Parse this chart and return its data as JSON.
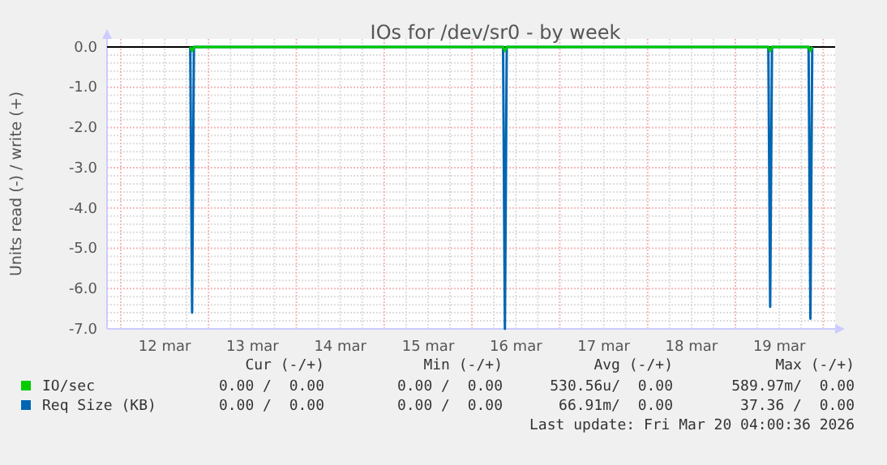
{
  "chart_data": {
    "type": "line",
    "title": "IOs for /dev/sr0 - by week",
    "ylabel": "Units read (-) / write (+)",
    "xlim": [
      "2026-03-11T20:15",
      "2026-03-20T03:15"
    ],
    "xticks": [
      {
        "value": "2026-03-12T00:00",
        "label": null
      },
      {
        "value": "2026-03-12T12:00",
        "label": "12 mar"
      },
      {
        "value": "2026-03-13T00:00",
        "label": null
      },
      {
        "value": "2026-03-13T12:00",
        "label": "13 mar"
      },
      {
        "value": "2026-03-14T00:00",
        "label": null
      },
      {
        "value": "2026-03-14T12:00",
        "label": "14 mar"
      },
      {
        "value": "2026-03-15T00:00",
        "label": null
      },
      {
        "value": "2026-03-15T12:00",
        "label": "15 mar"
      },
      {
        "value": "2026-03-16T00:00",
        "label": null
      },
      {
        "value": "2026-03-16T12:00",
        "label": "16 mar"
      },
      {
        "value": "2026-03-17T00:00",
        "label": null
      },
      {
        "value": "2026-03-17T12:00",
        "label": "17 mar"
      },
      {
        "value": "2026-03-18T00:00",
        "label": null
      },
      {
        "value": "2026-03-18T12:00",
        "label": "18 mar"
      },
      {
        "value": "2026-03-19T00:00",
        "label": null
      },
      {
        "value": "2026-03-19T12:00",
        "label": "19 mar"
      },
      {
        "value": "2026-03-20T00:00",
        "label": null
      }
    ],
    "ylim": [
      -7,
      0.2
    ],
    "yticks": [
      {
        "value": 0,
        "label": "0.0"
      },
      {
        "value": -1,
        "label": "-1.0"
      },
      {
        "value": -2,
        "label": "-2.0"
      },
      {
        "value": -3,
        "label": "-3.0"
      },
      {
        "value": -4,
        "label": "-4.0"
      },
      {
        "value": -5,
        "label": "-5.0"
      },
      {
        "value": -6,
        "label": "-6.0"
      },
      {
        "value": -7,
        "label": "-7.0"
      }
    ],
    "grid": true,
    "legend": "bottom",
    "marker": "none",
    "line_style": "solid",
    "x": [
      "2026-03-12T19:00",
      "2026-03-12T19:30",
      "2026-03-12T20:00",
      "2026-03-16T08:30",
      "2026-03-16T09:00",
      "2026-03-16T09:30",
      "2026-03-19T09:00",
      "2026-03-19T09:30",
      "2026-03-19T10:00",
      "2026-03-19T20:00",
      "2026-03-19T20:30",
      "2026-03-19T21:00"
    ],
    "series": [
      {
        "name": "IO/sec",
        "color": "#00cc00",
        "values": [
          0,
          -0.1,
          0,
          0,
          -0.1,
          0,
          0,
          -0.1,
          0,
          0,
          -0.1,
          0
        ]
      },
      {
        "name": "Req Size (KB)",
        "color": "#0066b3",
        "values": [
          0,
          -6.6,
          0,
          0,
          -7.0,
          0,
          0,
          -6.45,
          0,
          0,
          -6.75,
          0
        ]
      }
    ],
    "annotations": [
      "Cur (-/+)",
      "Min (-/+)",
      "Avg (-/+)",
      "Max (-/+)",
      "0.00 /  0.00",
      "0.00 /  0.00",
      "530.56u/  0.00",
      "589.97m/  0.00",
      "0.00 /  0.00",
      "0.00 /  0.00",
      "66.91m/  0.00",
      "37.36 /  0.00",
      "Last update: Fri Mar 20 04:00:36 2026"
    ]
  }
}
